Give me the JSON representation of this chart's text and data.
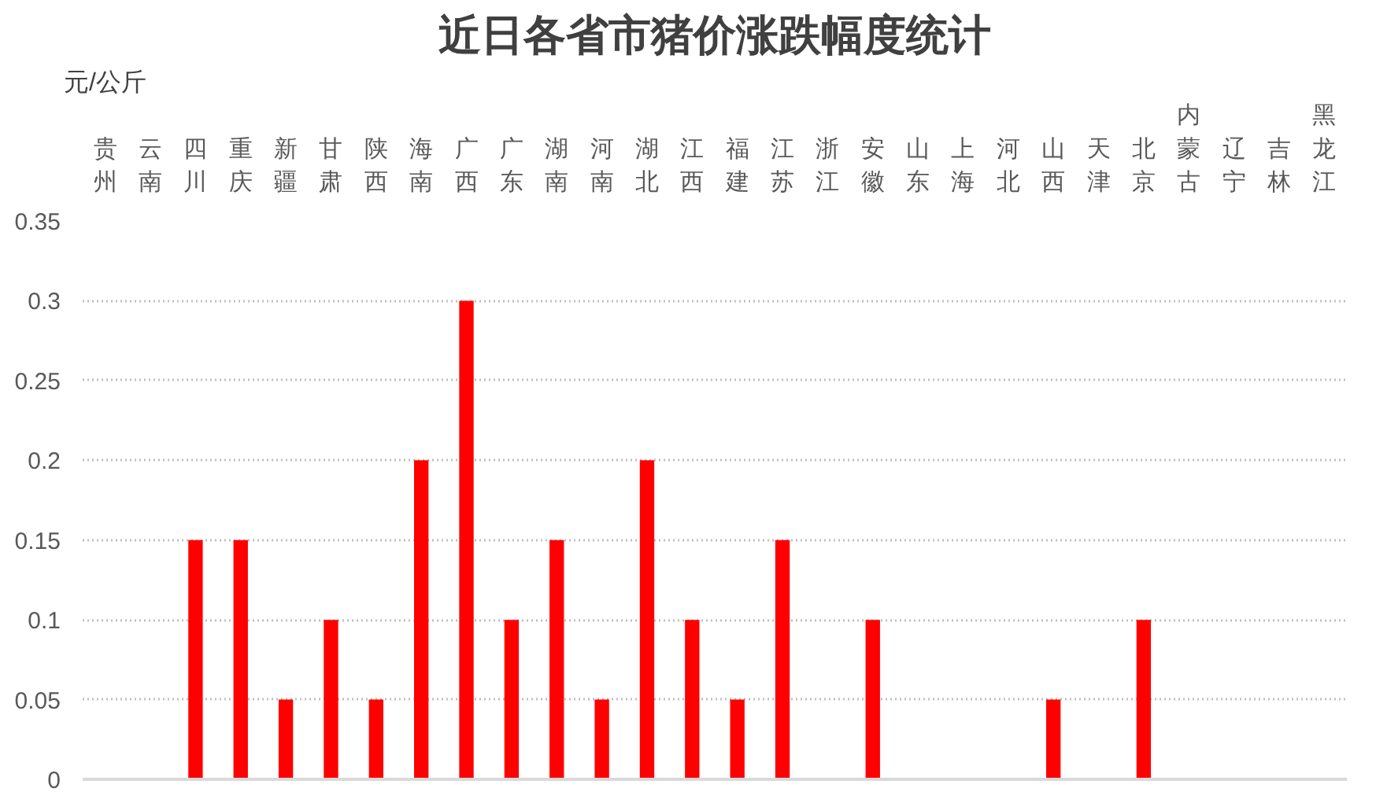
{
  "chart_data": {
    "type": "bar",
    "title": "近日各省市猪价涨跌幅度统计",
    "ylabel": "元/公斤",
    "categories": [
      "贵州",
      "云南",
      "四川",
      "重庆",
      "新疆",
      "甘肃",
      "陕西",
      "海南",
      "广西",
      "广东",
      "湖南",
      "河南",
      "湖北",
      "江西",
      "福建",
      "江苏",
      "浙江",
      "安徽",
      "山东",
      "上海",
      "河北",
      "山西",
      "天津",
      "北京",
      "内蒙古",
      "辽宁",
      "吉林",
      "黑龙江"
    ],
    "values": [
      0,
      0,
      0.15,
      0.15,
      0.05,
      0.1,
      0.05,
      0.2,
      0.3,
      0.1,
      0.15,
      0.05,
      0.2,
      0.1,
      0.05,
      0.15,
      0,
      0.1,
      0,
      0,
      0,
      0.05,
      0,
      0.1,
      0,
      0,
      0,
      0
    ],
    "color": "#ff0000",
    "ylim": [
      0,
      0.35
    ],
    "yticks": [
      0,
      0.05,
      0.1,
      0.15,
      0.2,
      0.25,
      0.3,
      0.35
    ],
    "grid": "y"
  }
}
